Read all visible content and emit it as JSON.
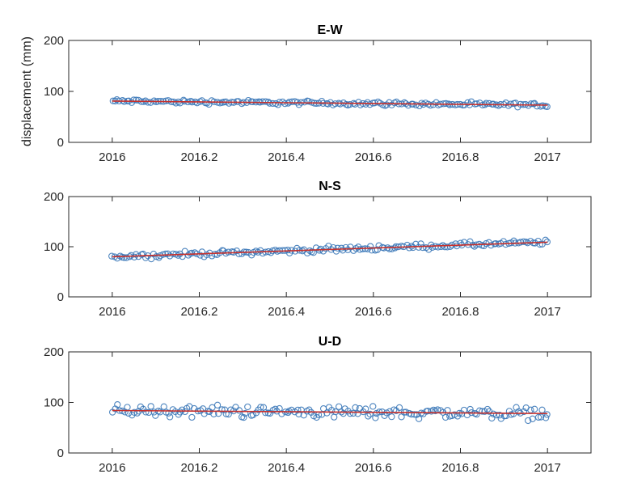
{
  "chart_data": [
    {
      "type": "scatter",
      "title": "E-W",
      "ylabel": "displacement (mm)",
      "xlim": [
        2015.9,
        2017.1
      ],
      "ylim": [
        0,
        200
      ],
      "xticks": [
        "2016",
        "2016.2",
        "2016.4",
        "2016.6",
        "2016.8",
        "2017"
      ],
      "yticks": [
        "0",
        "100",
        "200"
      ],
      "grid": false,
      "marker_color": "#3b78b8",
      "trend_color": "#c8302c",
      "trend": {
        "x": [
          2016.0,
          2017.0
        ],
        "y": [
          81,
          73
        ]
      },
      "series": [
        {
          "x_start": 2016.0,
          "x_end": 2017.0,
          "count": 180,
          "start": 81,
          "end": 73,
          "noise": 3
        }
      ]
    },
    {
      "type": "scatter",
      "title": "N-S",
      "xlim": [
        2015.9,
        2017.1
      ],
      "ylim": [
        0,
        200
      ],
      "xticks": [
        "2016",
        "2016.2",
        "2016.4",
        "2016.6",
        "2016.8",
        "2017"
      ],
      "yticks": [
        "0",
        "100",
        "200"
      ],
      "grid": false,
      "marker_color": "#3b78b8",
      "trend_color": "#c8302c",
      "trend": {
        "x": [
          2016.0,
          2017.0
        ],
        "y": [
          80,
          109
        ]
      },
      "series": [
        {
          "x_start": 2016.0,
          "x_end": 2017.0,
          "count": 180,
          "start": 80,
          "end": 109,
          "noise": 4
        }
      ]
    },
    {
      "type": "scatter",
      "title": "U-D",
      "xlim": [
        2015.9,
        2017.1
      ],
      "ylim": [
        0,
        200
      ],
      "xticks": [
        "2016",
        "2016.2",
        "2016.4",
        "2016.6",
        "2016.8",
        "2017"
      ],
      "yticks": [
        "0",
        "100",
        "200"
      ],
      "grid": false,
      "marker_color": "#3b78b8",
      "trend_color": "#c8302c",
      "trend": {
        "x": [
          2016.0,
          2017.0
        ],
        "y": [
          84,
          78
        ]
      },
      "series": [
        {
          "x_start": 2016.0,
          "x_end": 2017.0,
          "count": 180,
          "start": 84,
          "end": 78,
          "noise": 9
        }
      ]
    }
  ]
}
